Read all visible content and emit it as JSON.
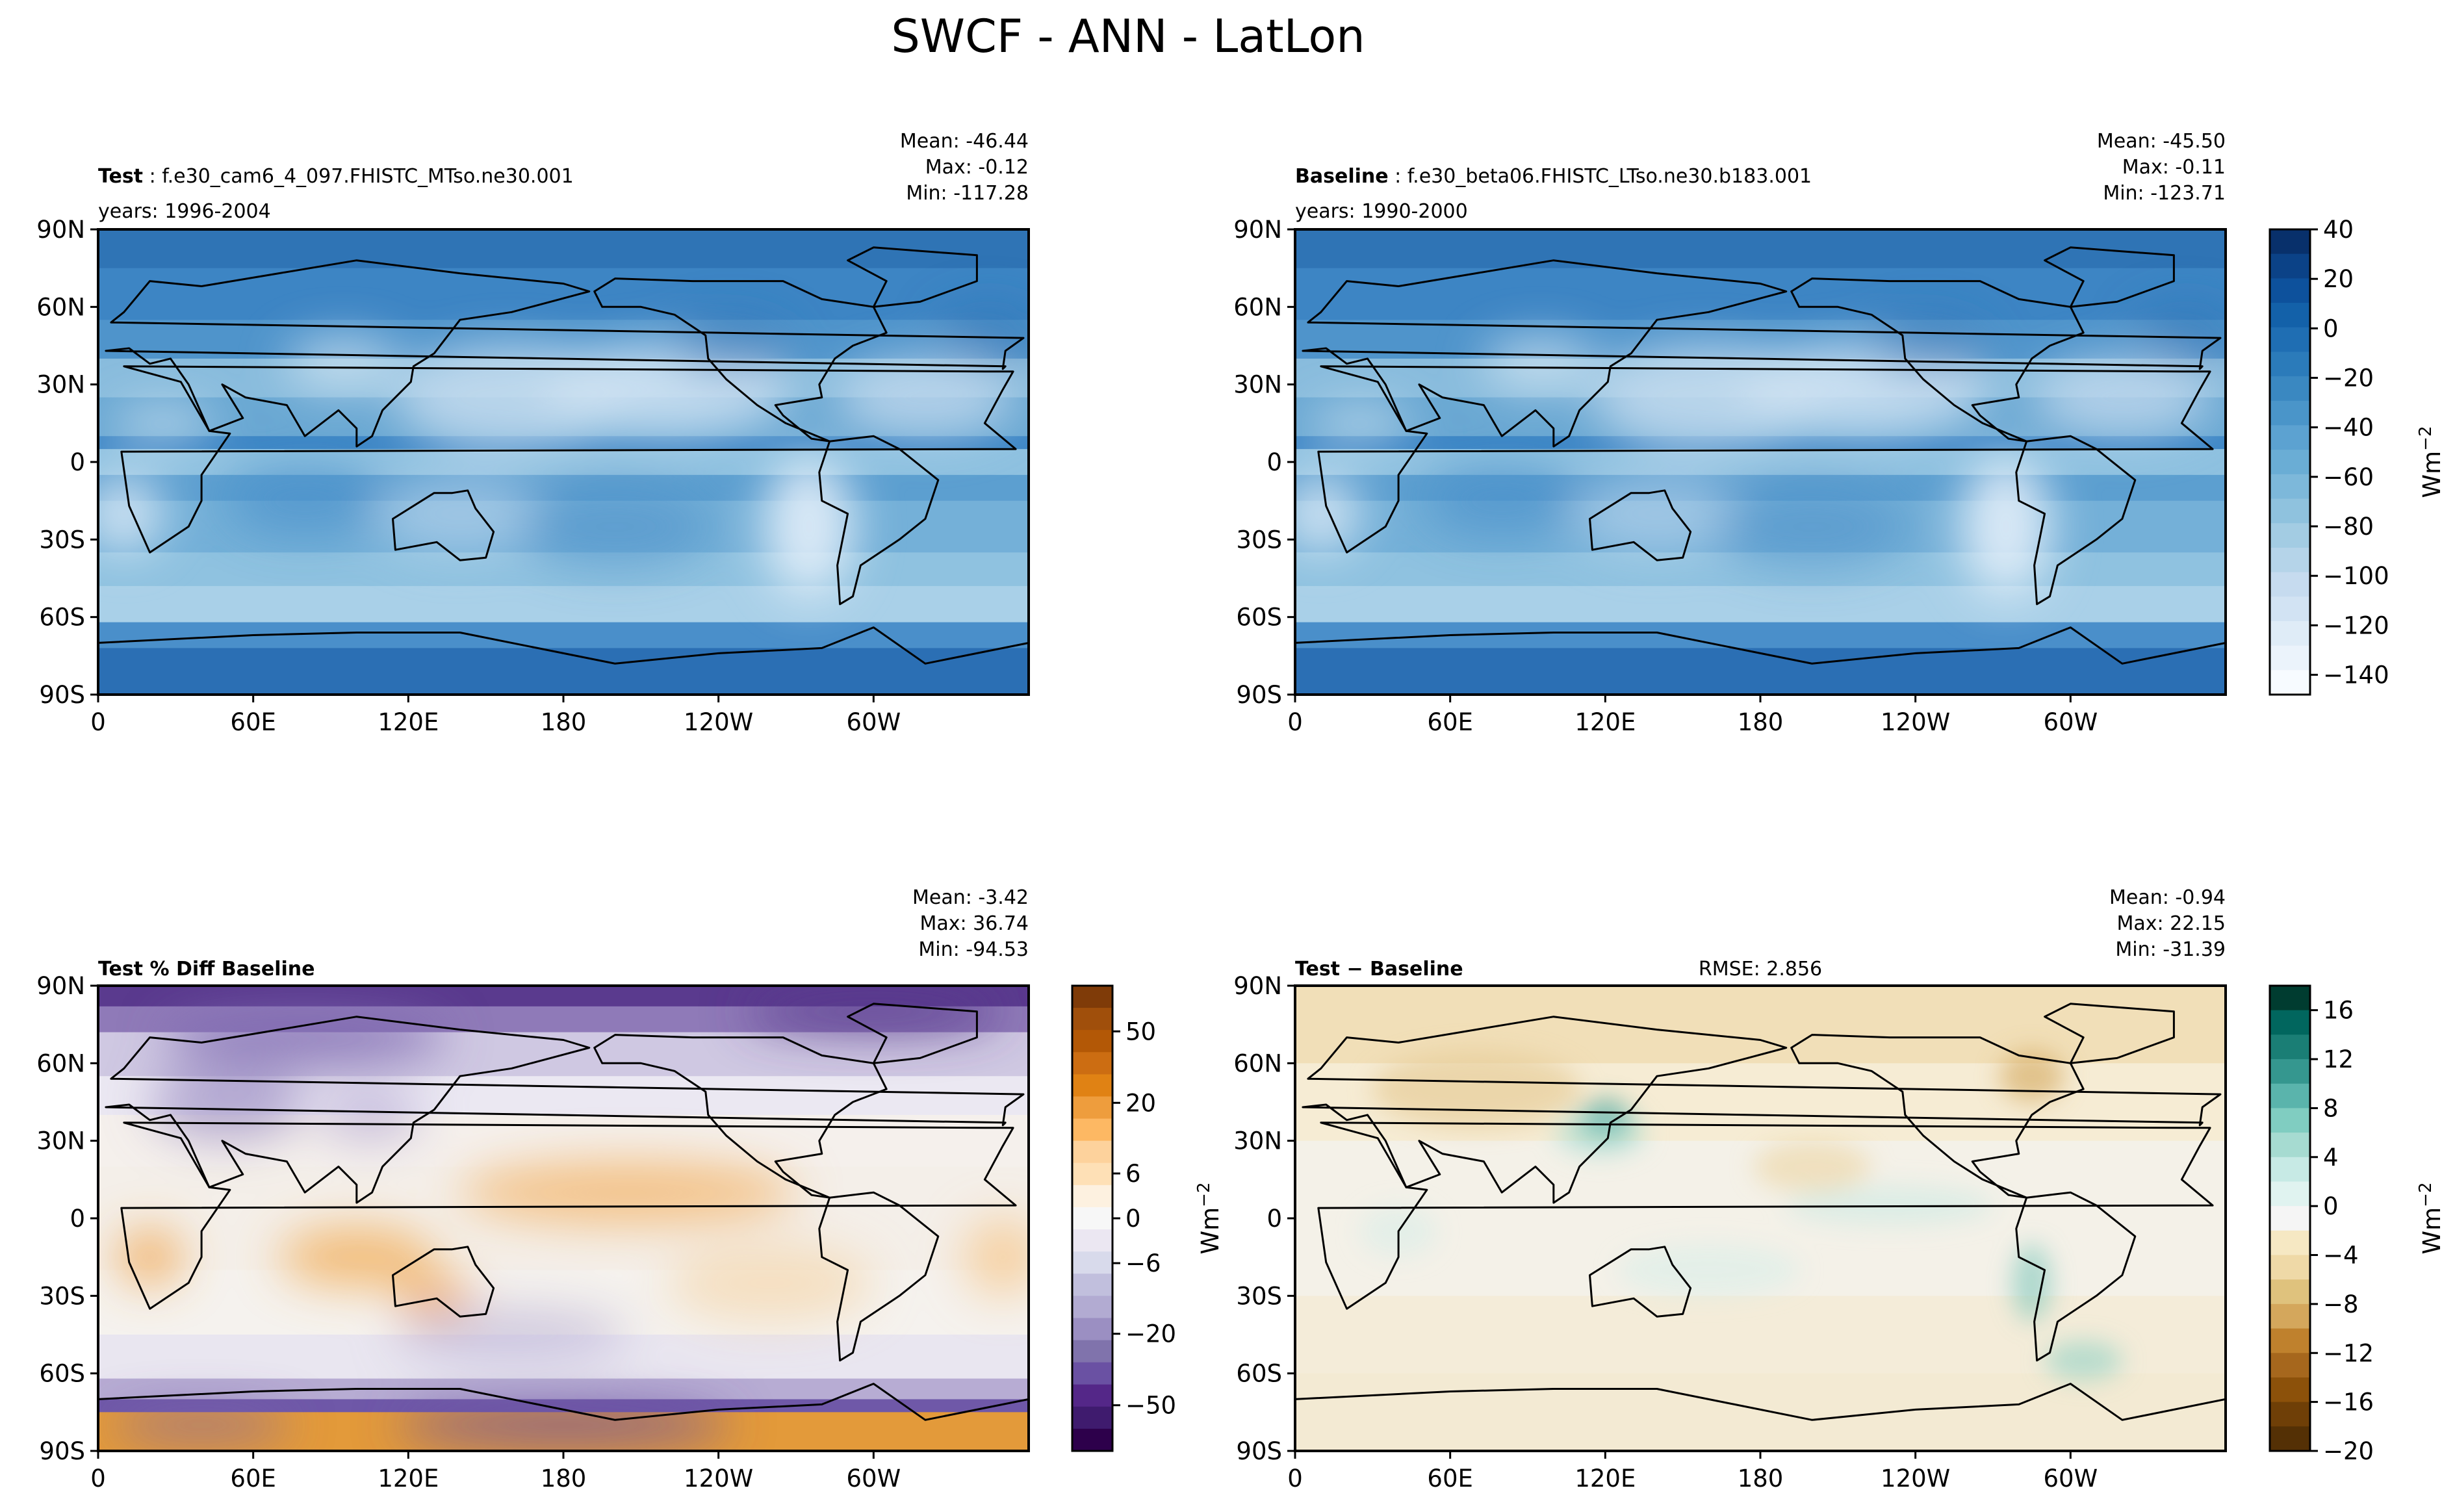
{
  "title": "SWCF - ANN - LatLon",
  "lat_ticks": [
    "90N",
    "60N",
    "30N",
    "0",
    "30S",
    "60S",
    "90S"
  ],
  "lon_ticks": [
    "0",
    "60E",
    "120E",
    "180",
    "120W",
    "60W"
  ],
  "panels": [
    {
      "bold": "Test",
      "label": " : f.e30_cam6_4_097.FHISTC_MTso.ne30.001",
      "years": "years: 1996-2004",
      "mean": "Mean: -46.44",
      "max": "Max: -0.12",
      "min": "Min: -117.28",
      "rmse": ""
    },
    {
      "bold": "Baseline",
      "label": " : f.e30_beta06.FHISTC_LTso.ne30.b183.001",
      "years": "years: 1990-2000",
      "mean": "Mean: -45.50",
      "max": "Max: -0.11",
      "min": "Min: -123.71",
      "rmse": ""
    },
    {
      "bold": "Test % Diff Baseline",
      "label": "",
      "years": "",
      "mean": "Mean: -3.42",
      "max": "Max: 36.74",
      "min": "Min: -94.53",
      "rmse": ""
    },
    {
      "bold": "Test − Baseline",
      "label": "",
      "years": "",
      "mean": "Mean: -0.94",
      "max": "Max: 22.15",
      "min": "Min: -31.39",
      "rmse": "RMSE: 2.856"
    }
  ],
  "colorbars": [
    {
      "unit": "Wm",
      "unit_sup": "−2",
      "ticks": [
        "40",
        "20",
        "0",
        "−20",
        "−40",
        "−60",
        "−80",
        "−100",
        "−120",
        "−140"
      ],
      "colors": [
        "#08306b",
        "#0b4287",
        "#0d519c",
        "#1361a9",
        "#1f6eb3",
        "#2b7bba",
        "#3a88c1",
        "#4a95c9",
        "#5ca2d1",
        "#6aadd5",
        "#7db8da",
        "#8fc2de",
        "#a3cce3",
        "#b5d4e9",
        "#c6dbef",
        "#d2e3f3",
        "#dfecf7",
        "#ebf3fb",
        "#f7fbff"
      ],
      "ticks_pos": [
        0,
        0.1064,
        0.2128,
        0.3191,
        0.4255,
        0.5319,
        0.6383,
        0.7447,
        0.8511,
        0.9574
      ]
    },
    {
      "unit": "",
      "unit_sup": "",
      "ticks": [
        "50",
        "20",
        "6",
        "0",
        "−6",
        "−20",
        "−50"
      ],
      "colors": [
        "#7f3b08",
        "#a04f0b",
        "#b35806",
        "#cc6d12",
        "#e08214",
        "#ee9d3d",
        "#fdb863",
        "#fdd29c",
        "#fee0b6",
        "#fdf1e0",
        "#f7f7f7",
        "#ebe7f2",
        "#d8daeb",
        "#c1bfdd",
        "#b2abd2",
        "#9b8fc2",
        "#8073ac",
        "#6a51a3",
        "#542788",
        "#3f1b6e",
        "#2d004b"
      ],
      "ticks_pos": [
        0.0982,
        0.2518,
        0.4036,
        0.5,
        0.5964,
        0.7482,
        0.9018
      ]
    },
    {
      "unit": "Wm",
      "unit_sup": "−2",
      "ticks": [
        "16",
        "12",
        "8",
        "4",
        "0",
        "−4",
        "−8",
        "−12",
        "−16",
        "−20"
      ],
      "colors": [
        "#003c30",
        "#01665e",
        "#1a7e75",
        "#35978f",
        "#5ab4ac",
        "#80cdc1",
        "#a6dbd1",
        "#c7eae5",
        "#e0f3f0",
        "#f5f5f5",
        "#f6e8c3",
        "#efd9a7",
        "#dfc27d",
        "#d4a75c",
        "#bf812d",
        "#a6671d",
        "#8c510a",
        "#6f3f07",
        "#543005"
      ],
      "ticks_pos": [
        0.0526,
        0.1579,
        0.2632,
        0.3684,
        0.4737,
        0.5789,
        0.6842,
        0.7895,
        0.8947,
        1.0
      ]
    }
  ],
  "left_colorbar_unit": "Wm",
  "left_colorbar_unit_sup": "−2",
  "chart_data": [
    {
      "type": "heatmap",
      "title": "Test : f.e30_cam6_4_097.FHISTC_MTso.ne30.001",
      "subtitle": "years: 1996-2004",
      "stats": {
        "mean": -46.44,
        "max": -0.12,
        "min": -117.28
      },
      "xlabel": "",
      "ylabel": "",
      "x_ticks": [
        "0",
        "60E",
        "120E",
        "180",
        "120W",
        "60W"
      ],
      "y_ticks": [
        "90N",
        "60N",
        "30N",
        "0",
        "30S",
        "60S",
        "90S"
      ],
      "colorbar": {
        "range": [
          -150,
          40
        ],
        "label": "Wm−2"
      }
    },
    {
      "type": "heatmap",
      "title": "Baseline : f.e30_beta06.FHISTC_LTso.ne30.b183.001",
      "subtitle": "years: 1990-2000",
      "stats": {
        "mean": -45.5,
        "max": -0.11,
        "min": -123.71
      },
      "xlabel": "",
      "ylabel": "",
      "x_ticks": [
        "0",
        "60E",
        "120E",
        "180",
        "120W",
        "60W"
      ],
      "y_ticks": [
        "90N",
        "60N",
        "30N",
        "0",
        "30S",
        "60S",
        "90S"
      ],
      "colorbar": {
        "range": [
          -150,
          40
        ],
        "label": "Wm−2"
      }
    },
    {
      "type": "heatmap",
      "title": "Test % Diff Baseline",
      "stats": {
        "mean": -3.42,
        "max": 36.74,
        "min": -94.53
      },
      "xlabel": "",
      "ylabel": "",
      "x_ticks": [
        "0",
        "60E",
        "120E",
        "180",
        "120W",
        "60W"
      ],
      "y_ticks": [
        "90N",
        "60N",
        "30N",
        "0",
        "30S",
        "60S",
        "90S"
      ],
      "colorbar": {
        "ticks": [
          50,
          20,
          6,
          0,
          -6,
          -20,
          -50
        ],
        "label": "Wm−2"
      }
    },
    {
      "type": "heatmap",
      "title": "Test − Baseline",
      "stats": {
        "mean": -0.94,
        "max": 22.15,
        "min": -31.39,
        "rmse": 2.856
      },
      "xlabel": "",
      "ylabel": "",
      "x_ticks": [
        "0",
        "60E",
        "120E",
        "180",
        "120W",
        "60W"
      ],
      "y_ticks": [
        "90N",
        "60N",
        "30N",
        "0",
        "30S",
        "60S",
        "90S"
      ],
      "colorbar": {
        "range": [
          -20,
          18
        ],
        "label": "Wm−2"
      }
    }
  ]
}
